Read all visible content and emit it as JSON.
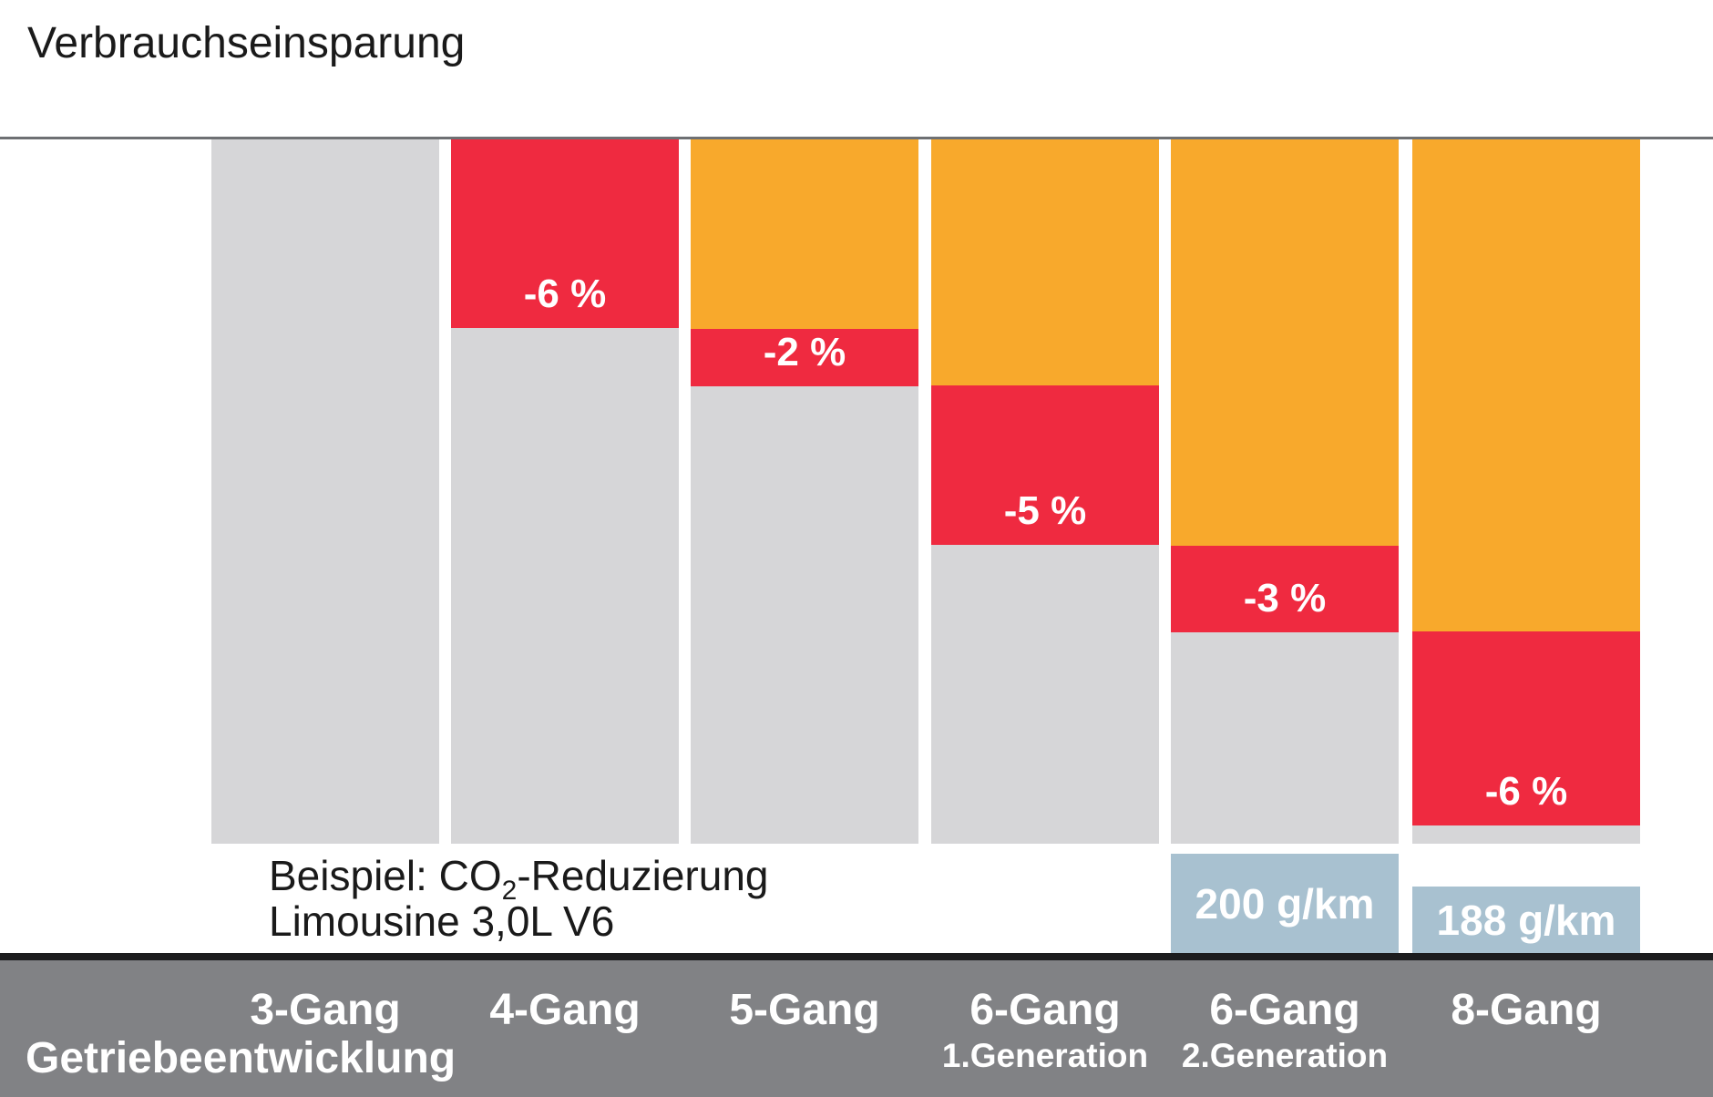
{
  "title": "Verbrauchseinsparung",
  "axis": {
    "x_title": "Getriebeentwicklung"
  },
  "example_note": {
    "line1_prefix": "Beispiel: CO",
    "line1_sub": "2",
    "line1_suffix": "-Reduzierung",
    "line2": "Limousine 3,0L V6"
  },
  "colors": {
    "saved": "#f8a92c",
    "reduction": "#ef2a40",
    "remaining": "#d6d6d8",
    "co2_badge": "#a8c1d0",
    "band": "#818285",
    "band_top_line": "#1c1c1e",
    "top_rule": "#6e7073",
    "text_dark": "#1a1a1a",
    "text_light": "#ffffff"
  },
  "chart_data": {
    "type": "bar",
    "subtype": "stacked-waterfall",
    "title": "Verbrauchseinsparung",
    "xlabel": "Getriebeentwicklung",
    "legend_position": "none",
    "grid": false,
    "note": "Schematic stacked columns: orange = cumulative saving, red = incremental saving of this gearbox generation, grey = remaining consumption. Heights read from pixels as % of column height.",
    "categories": [
      "3-Gang",
      "4-Gang",
      "5-Gang",
      "6-Gang 1.Generation",
      "6-Gang 2.Generation",
      "8-Gang"
    ],
    "bars": [
      {
        "label": "3-Gang",
        "generation": "",
        "reduction_label": "",
        "reduction_percent": 0,
        "segments_pct": {
          "saved": 0,
          "reduction": 0,
          "remaining": 100
        },
        "co2_label": ""
      },
      {
        "label": "4-Gang",
        "generation": "",
        "reduction_label": "-6 %",
        "reduction_percent": -6,
        "segments_pct": {
          "saved": 0,
          "reduction": 26.8,
          "remaining": 73.2
        },
        "co2_label": ""
      },
      {
        "label": "5-Gang",
        "generation": "",
        "reduction_label": "-2 %",
        "reduction_percent": -2,
        "segments_pct": {
          "saved": 26.9,
          "reduction": 8.2,
          "remaining": 64.9
        },
        "co2_label": ""
      },
      {
        "label": "6-Gang",
        "generation": "1.Generation",
        "reduction_label": "-5 %",
        "reduction_percent": -5,
        "segments_pct": {
          "saved": 34.9,
          "reduction": 22.7,
          "remaining": 42.4
        },
        "co2_label": ""
      },
      {
        "label": "6-Gang",
        "generation": "2.Generation",
        "reduction_label": "-3 %",
        "reduction_percent": -3,
        "segments_pct": {
          "saved": 57.7,
          "reduction": 12.3,
          "remaining": 30.0
        },
        "co2_label": "200 g/km"
      },
      {
        "label": "8-Gang",
        "generation": "",
        "reduction_label": "-6 %",
        "reduction_percent": -6,
        "segments_pct": {
          "saved": 69.9,
          "reduction": 27.5,
          "remaining": 2.6
        },
        "co2_label": "188 g/km"
      }
    ],
    "co2_values": [
      {
        "category": "6-Gang 2.Generation",
        "value": "200 g/km"
      },
      {
        "category": "8-Gang",
        "value": "188 g/km"
      }
    ]
  }
}
